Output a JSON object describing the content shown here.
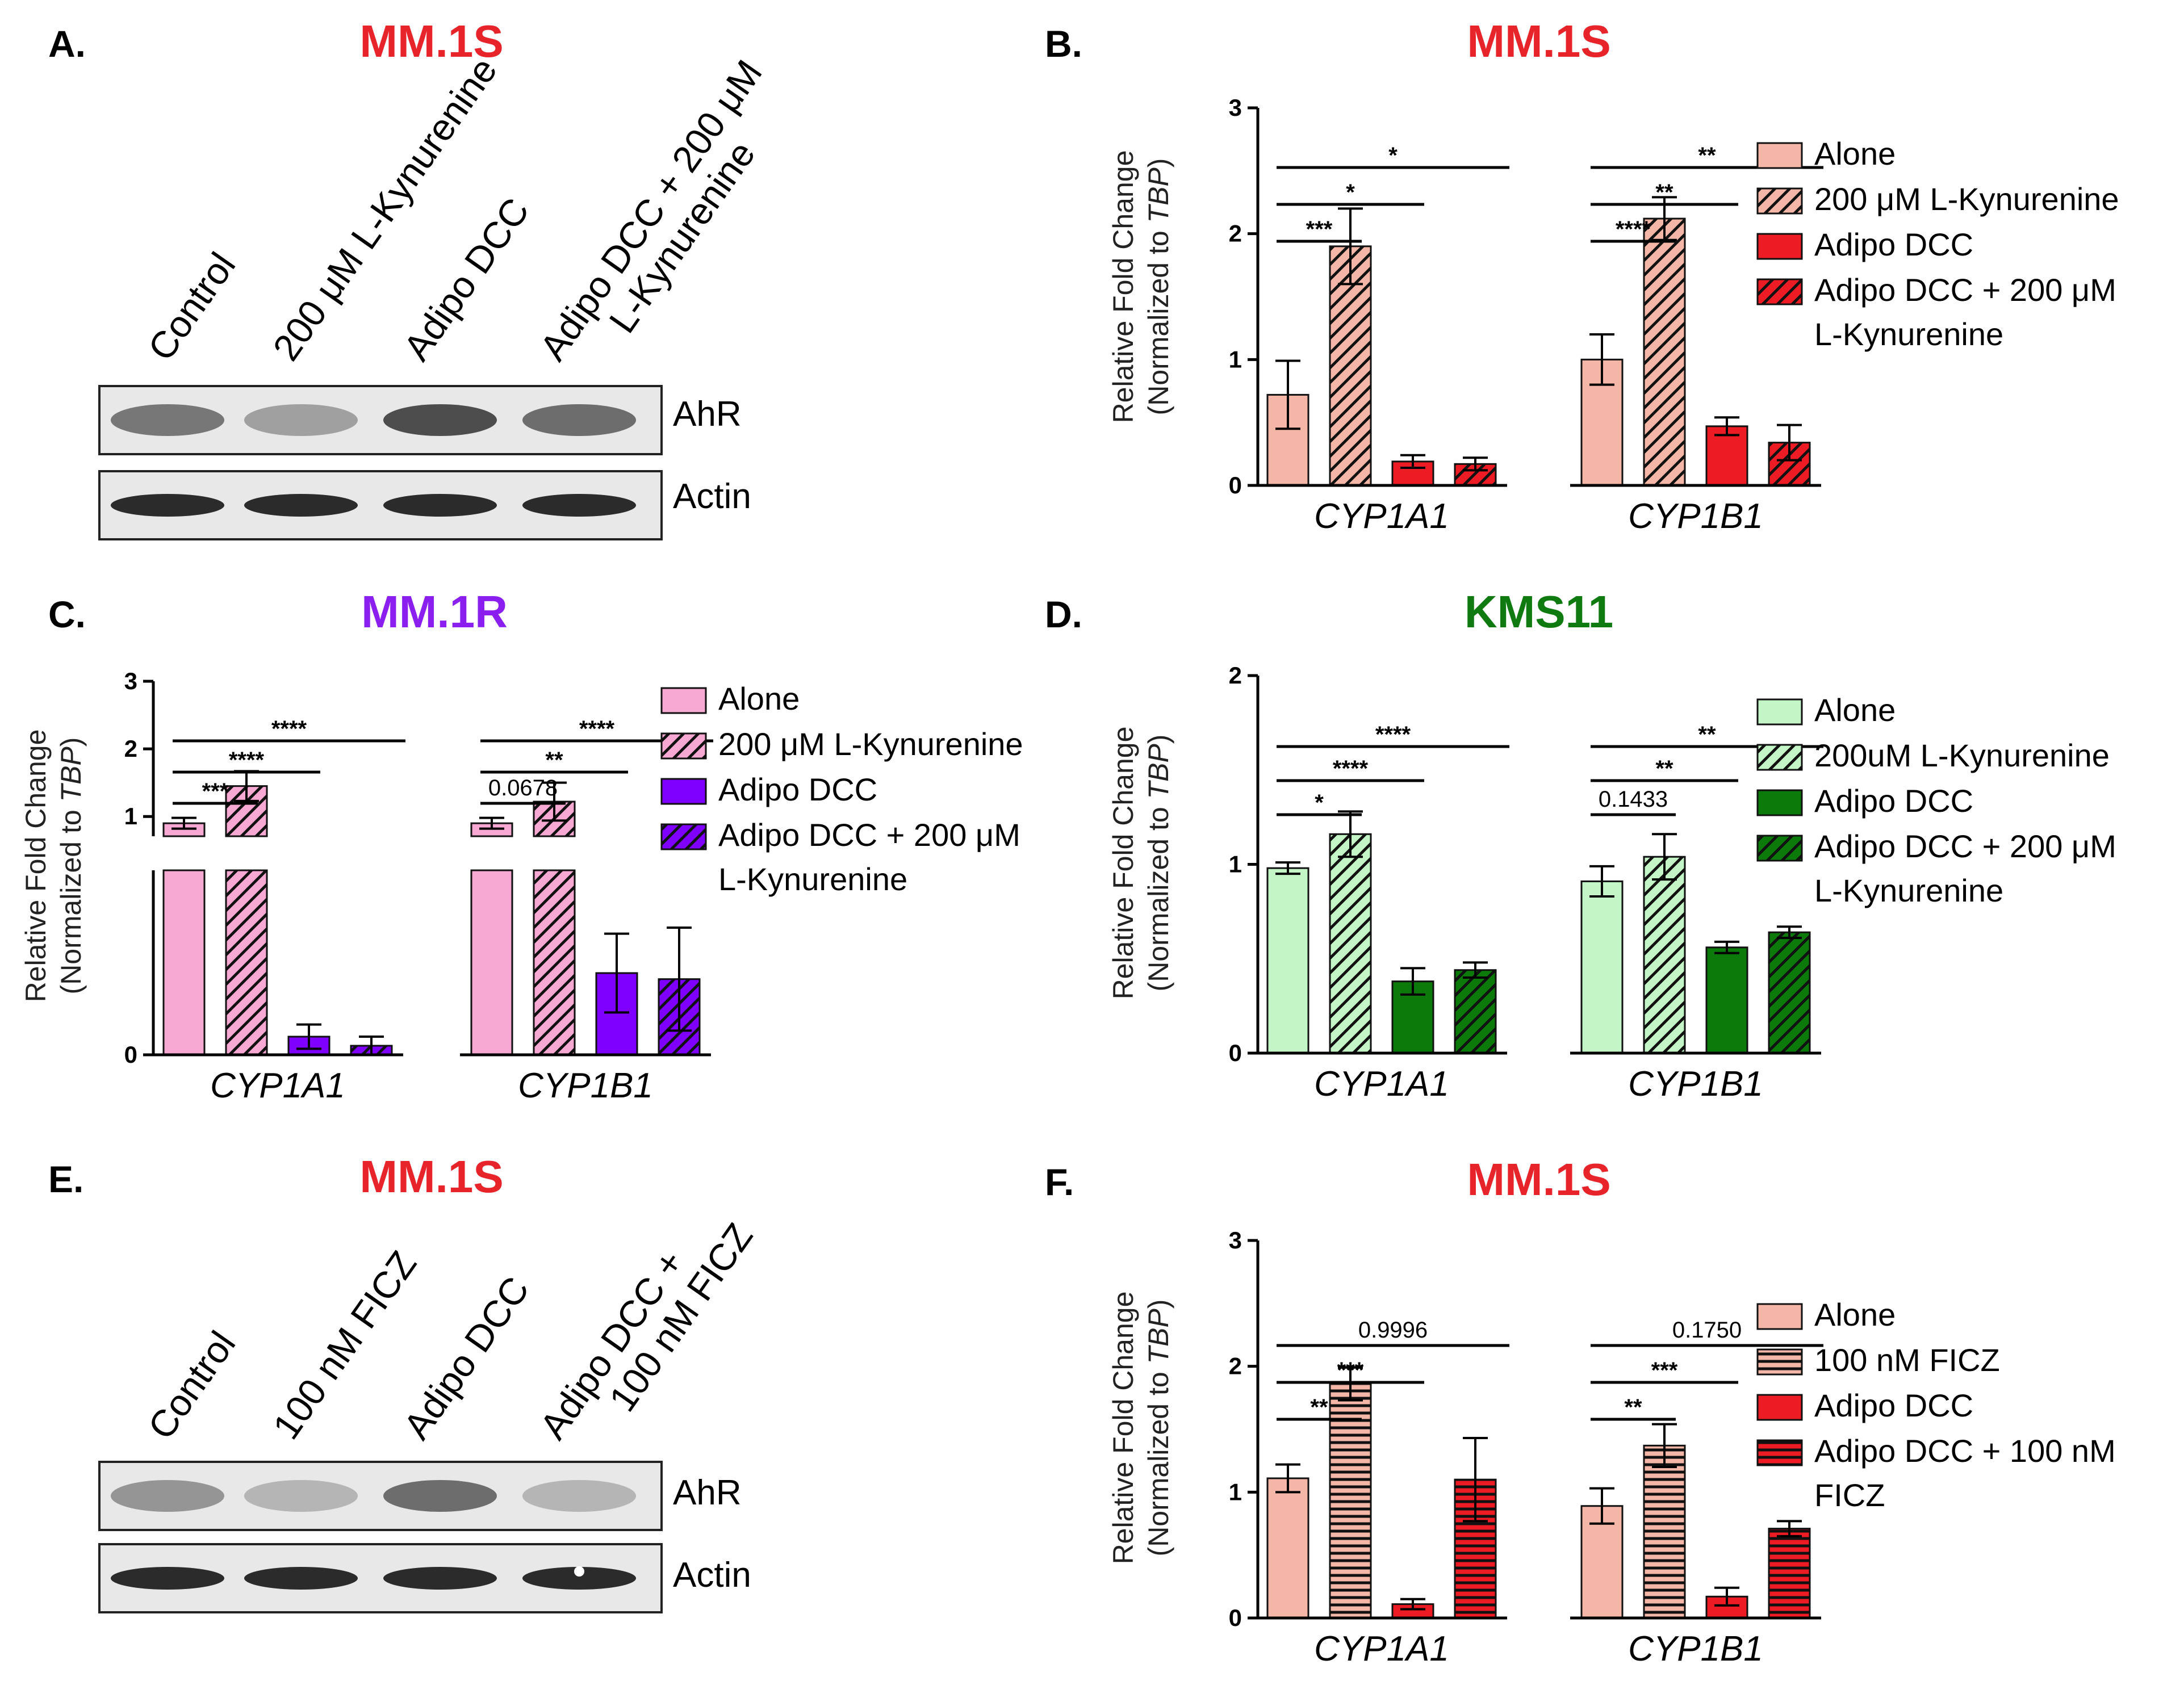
{
  "blots": [
    {
      "letter": "A.",
      "title": "MM.1S",
      "title_color": "#e8242b",
      "lanes": [
        "Control",
        "200 μM L-Kynurenine",
        "Adipo DCC",
        "Adipo DCC + 200 μM|L-Kynurenine"
      ],
      "bands": [
        "AhR",
        "Actin"
      ]
    },
    {
      "letter": "E.",
      "title": "MM.1S",
      "title_color": "#e8242b",
      "lanes": [
        "Control",
        "100 nM FICZ",
        "Adipo DCC",
        "Adipo DCC +|100 nM FICZ"
      ],
      "bands": [
        "AhR",
        "Actin"
      ]
    }
  ],
  "chart_data": [
    {
      "letter": "B.",
      "title": "MM.1S",
      "title_color": "#e8242b",
      "type": "bar",
      "ylabel_line1": "Relative Fold Change",
      "ylabel_line2_pre": "(Normalized to ",
      "ylabel_line2_it": "TBP",
      "ylabel_line2_post": ")",
      "ylim": [
        0,
        3
      ],
      "yticks": [
        "0",
        "1",
        "2",
        "3"
      ],
      "categories": [
        "CYP1A1",
        "CYP1B1"
      ],
      "pattern": "diag",
      "series": [
        {
          "name": "Alone",
          "fill": "#f4b6a6",
          "hatched": false,
          "values": [
            0.72,
            1.0
          ],
          "errors": [
            0.27,
            0.2
          ]
        },
        {
          "name": "200 μM L-Kynurenine",
          "fill": "#f4b6a6",
          "hatched": true,
          "values": [
            1.9,
            2.12
          ],
          "errors": [
            0.3,
            0.17
          ]
        },
        {
          "name": "Adipo DCC",
          "fill": "#ed1c24",
          "hatched": false,
          "values": [
            0.19,
            0.47
          ],
          "errors": [
            0.05,
            0.07
          ]
        },
        {
          "name": "Adipo DCC + 200 μM|L-Kynurenine",
          "fill": "#ed1c24",
          "hatched": true,
          "values": [
            0.17,
            0.34
          ],
          "errors": [
            0.05,
            0.14
          ]
        }
      ],
      "comparisons": [
        {
          "cat": 0,
          "to": 1,
          "label": "***",
          "level": 0
        },
        {
          "cat": 0,
          "to": 2,
          "label": "*",
          "level": 1
        },
        {
          "cat": 0,
          "to": 3,
          "label": "*",
          "level": 2
        },
        {
          "cat": 1,
          "to": 1,
          "label": "****",
          "level": 0
        },
        {
          "cat": 1,
          "to": 2,
          "label": "**",
          "level": 1
        },
        {
          "cat": 1,
          "to": 3,
          "label": "**",
          "level": 2
        }
      ]
    },
    {
      "letter": "C.",
      "title": "MM.1R",
      "title_color": "#8b1ff0",
      "type": "bar",
      "ylabel_line1": "Relative Fold Change",
      "ylabel_line2_pre": "(Normalized to ",
      "ylabel_line2_it": "TBP",
      "ylabel_line2_post": ")",
      "ylim": [
        0,
        3
      ],
      "yticks": [
        "0",
        "1",
        "2",
        "3"
      ],
      "y_axis_break": true,
      "categories": [
        "CYP1A1",
        "CYP1B1"
      ],
      "pattern": "diag",
      "series": [
        {
          "name": "Alone",
          "fill": "#f7a8d3",
          "hatched": false,
          "values": [
            0.9,
            0.9
          ],
          "errors": [
            0.08,
            0.08
          ]
        },
        {
          "name": "200 μM L-Kynurenine",
          "fill": "#f7a8d3",
          "hatched": true,
          "values": [
            1.45,
            1.22
          ],
          "errors": [
            0.22,
            0.28
          ]
        },
        {
          "name": "Adipo DCC",
          "fill": "#7f00ff",
          "hatched": false,
          "values": [
            0.06,
            0.27
          ],
          "errors": [
            0.04,
            0.13
          ]
        },
        {
          "name": "Adipo DCC + 200 μM|L-Kynurenine",
          "fill": "#7f00ff",
          "hatched": true,
          "values": [
            0.03,
            0.25
          ],
          "errors": [
            0.03,
            0.17
          ]
        }
      ],
      "comparisons": [
        {
          "cat": 0,
          "to": 1,
          "label": "***",
          "level": 0
        },
        {
          "cat": 0,
          "to": 2,
          "label": "****",
          "level": 1
        },
        {
          "cat": 0,
          "to": 3,
          "label": "****",
          "level": 2
        },
        {
          "cat": 1,
          "to": 1,
          "label": "0.0678",
          "level": 0
        },
        {
          "cat": 1,
          "to": 2,
          "label": "**",
          "level": 1
        },
        {
          "cat": 1,
          "to": 3,
          "label": "****",
          "level": 2
        }
      ]
    },
    {
      "letter": "D.",
      "title": "KMS11",
      "title_color": "#0f7a0f",
      "type": "bar",
      "ylabel_line1": "Relative Fold Change",
      "ylabel_line2_pre": "(Normalized to ",
      "ylabel_line2_it": "TBP",
      "ylabel_line2_post": ")",
      "ylim": [
        0,
        2
      ],
      "yticks": [
        "0",
        "1",
        "2"
      ],
      "categories": [
        "CYP1A1",
        "CYP1B1"
      ],
      "pattern": "diag",
      "series": [
        {
          "name": "Alone",
          "fill": "#c3f5c6",
          "hatched": false,
          "values": [
            0.98,
            0.91
          ],
          "errors": [
            0.03,
            0.08
          ]
        },
        {
          "name": "200uM L-Kynurenine",
          "fill": "#c3f5c6",
          "hatched": true,
          "values": [
            1.16,
            1.04
          ],
          "errors": [
            0.12,
            0.12
          ]
        },
        {
          "name": "Adipo DCC",
          "fill": "#0b7a0b",
          "hatched": false,
          "values": [
            0.38,
            0.56
          ],
          "errors": [
            0.07,
            0.03
          ]
        },
        {
          "name": "Adipo DCC + 200 μM|L-Kynurenine",
          "fill": "#0b7a0b",
          "hatched": true,
          "values": [
            0.44,
            0.64
          ],
          "errors": [
            0.04,
            0.03
          ]
        }
      ],
      "comparisons": [
        {
          "cat": 0,
          "to": 1,
          "label": "*",
          "level": 0
        },
        {
          "cat": 0,
          "to": 2,
          "label": "****",
          "level": 1
        },
        {
          "cat": 0,
          "to": 3,
          "label": "****",
          "level": 2
        },
        {
          "cat": 1,
          "to": 1,
          "label": "0.1433",
          "level": 0
        },
        {
          "cat": 1,
          "to": 2,
          "label": "**",
          "level": 1
        },
        {
          "cat": 1,
          "to": 3,
          "label": "**",
          "level": 2
        }
      ]
    },
    {
      "letter": "F.",
      "title": "MM.1S",
      "title_color": "#e8242b",
      "type": "bar",
      "ylabel_line1": "Relative Fold Change",
      "ylabel_line2_pre": "(Normalized to ",
      "ylabel_line2_it": "TBP",
      "ylabel_line2_post": ")",
      "ylim": [
        0,
        3
      ],
      "yticks": [
        "0",
        "1",
        "2",
        "3"
      ],
      "categories": [
        "CYP1A1",
        "CYP1B1"
      ],
      "pattern": "horiz",
      "series": [
        {
          "name": "Alone",
          "fill": "#f4b6a6",
          "hatched": false,
          "values": [
            1.11,
            0.89
          ],
          "errors": [
            0.11,
            0.14
          ]
        },
        {
          "name": "100 nM FICZ",
          "fill": "#f4b6a6",
          "hatched": true,
          "values": [
            1.86,
            1.37
          ],
          "errors": [
            0.13,
            0.17
          ]
        },
        {
          "name": "Adipo DCC",
          "fill": "#ed1c24",
          "hatched": false,
          "values": [
            0.11,
            0.17
          ],
          "errors": [
            0.04,
            0.07
          ]
        },
        {
          "name": "Adipo DCC + 100 nM|FICZ",
          "fill": "#ed1c24",
          "hatched": true,
          "values": [
            1.1,
            0.71
          ],
          "errors": [
            0.33,
            0.06
          ]
        }
      ],
      "comparisons": [
        {
          "cat": 0,
          "to": 1,
          "label": "**",
          "level": 0
        },
        {
          "cat": 0,
          "to": 2,
          "label": "***",
          "level": 1
        },
        {
          "cat": 0,
          "to": 3,
          "label": "0.9996",
          "level": 2
        },
        {
          "cat": 1,
          "to": 1,
          "label": "**",
          "level": 0
        },
        {
          "cat": 1,
          "to": 2,
          "label": "***",
          "level": 1
        },
        {
          "cat": 1,
          "to": 3,
          "label": "0.1750",
          "level": 2
        }
      ]
    }
  ]
}
